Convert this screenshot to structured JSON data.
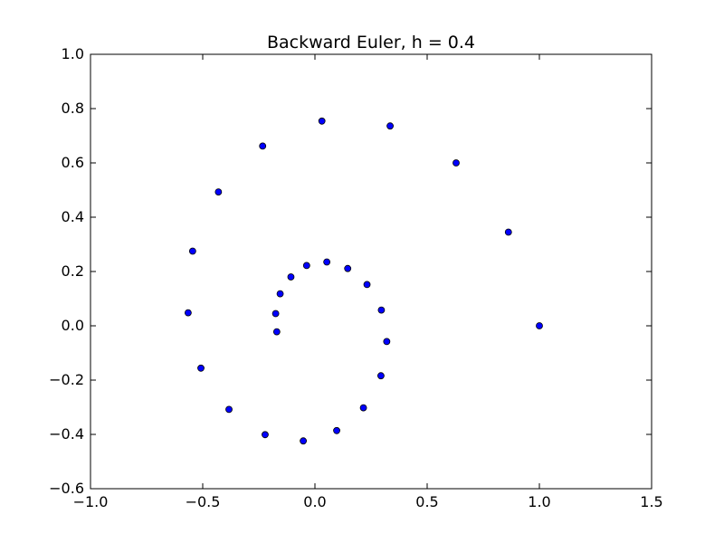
{
  "chart_data": {
    "type": "scatter",
    "title": "Backward Euler, h = 0.4",
    "xlabel": "",
    "ylabel": "",
    "xlim": [
      -1.0,
      1.5
    ],
    "ylim": [
      -0.6,
      1.0
    ],
    "grid": false,
    "x_ticks": [
      -1.0,
      -0.5,
      0.0,
      0.5,
      1.0,
      1.5
    ],
    "x_tick_labels": [
      "−1.0",
      "−0.5",
      "0.0",
      "0.5",
      "1.0",
      "1.5"
    ],
    "y_ticks": [
      -0.6,
      -0.4,
      -0.2,
      0.0,
      0.2,
      0.4,
      0.6,
      0.8,
      1.0
    ],
    "y_tick_labels": [
      "−0.6",
      "−0.4",
      "−0.2",
      "0.0",
      "0.2",
      "0.4",
      "0.6",
      "0.8",
      "1.0"
    ],
    "marker_color": "#0000ff",
    "marker_edge_color": "#000000",
    "points": [
      {
        "x": 1.0,
        "y": 0.0
      },
      {
        "x": 0.862,
        "y": 0.345
      },
      {
        "x": 0.629,
        "y": 0.6
      },
      {
        "x": 0.335,
        "y": 0.736
      },
      {
        "x": 0.031,
        "y": 0.754
      },
      {
        "x": -0.233,
        "y": 0.662
      },
      {
        "x": -0.43,
        "y": 0.493
      },
      {
        "x": -0.545,
        "y": 0.275
      },
      {
        "x": -0.565,
        "y": 0.048
      },
      {
        "x": -0.508,
        "y": -0.156
      },
      {
        "x": -0.383,
        "y": -0.308
      },
      {
        "x": -0.222,
        "y": -0.401
      },
      {
        "x": -0.052,
        "y": -0.424
      },
      {
        "x": 0.097,
        "y": -0.386
      },
      {
        "x": 0.216,
        "y": -0.302
      },
      {
        "x": 0.294,
        "y": -0.184
      },
      {
        "x": 0.32,
        "y": -0.058
      },
      {
        "x": 0.296,
        "y": 0.058
      },
      {
        "x": 0.232,
        "y": 0.152
      },
      {
        "x": 0.146,
        "y": 0.211
      },
      {
        "x": 0.053,
        "y": 0.235
      },
      {
        "x": -0.037,
        "y": 0.222
      },
      {
        "x": -0.107,
        "y": 0.18
      },
      {
        "x": -0.155,
        "y": 0.118
      },
      {
        "x": -0.175,
        "y": 0.045
      },
      {
        "x": -0.17,
        "y": -0.022
      }
    ]
  }
}
